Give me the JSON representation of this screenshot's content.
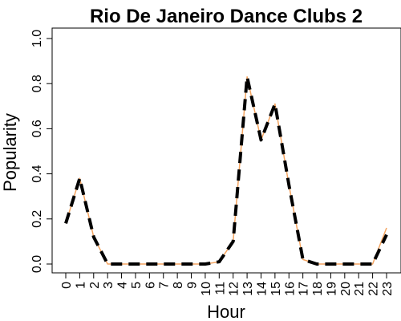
{
  "chart_data": {
    "type": "line",
    "title": "Rio De Janeiro Dance Clubs 2",
    "xlabel": "Hour",
    "ylabel": "Popularity",
    "x": [
      0,
      1,
      2,
      3,
      4,
      5,
      6,
      7,
      8,
      9,
      10,
      11,
      12,
      13,
      14,
      15,
      16,
      17,
      18,
      19,
      20,
      21,
      22,
      23
    ],
    "x_tick_labels": [
      "0",
      "1",
      "2",
      "3",
      "4",
      "5",
      "6",
      "7",
      "8",
      "9",
      "10",
      "11",
      "12",
      "13",
      "14",
      "15",
      "16",
      "17",
      "18",
      "19",
      "20",
      "21",
      "22",
      "23"
    ],
    "y_ticks": [
      0.0,
      0.2,
      0.4,
      0.6,
      0.8,
      1.0
    ],
    "y_tick_labels": [
      "0.0",
      "0.2",
      "0.4",
      "0.6",
      "0.8",
      "1.0"
    ],
    "ylim": [
      0,
      1.0
    ],
    "xlim": [
      0,
      23
    ],
    "grid": false,
    "series": [
      {
        "values": [
          0.18,
          0.38,
          0.12,
          0.0,
          0.0,
          0.0,
          0.0,
          0.0,
          0.0,
          0.0,
          0.0,
          0.01,
          0.1,
          0.83,
          0.55,
          0.71,
          0.35,
          0.02,
          0.0,
          0.0,
          0.0,
          0.0,
          0.0,
          0.16
        ],
        "color": "#f4a460",
        "style": "solid"
      },
      {
        "values": [
          0.18,
          0.38,
          0.12,
          0.0,
          0.0,
          0.0,
          0.0,
          0.0,
          0.0,
          0.0,
          0.0,
          0.01,
          0.1,
          0.83,
          0.55,
          0.71,
          0.35,
          0.02,
          0.0,
          0.0,
          0.0,
          0.0,
          0.0,
          0.13
        ],
        "color": "#000000",
        "style": "dashed"
      }
    ]
  }
}
